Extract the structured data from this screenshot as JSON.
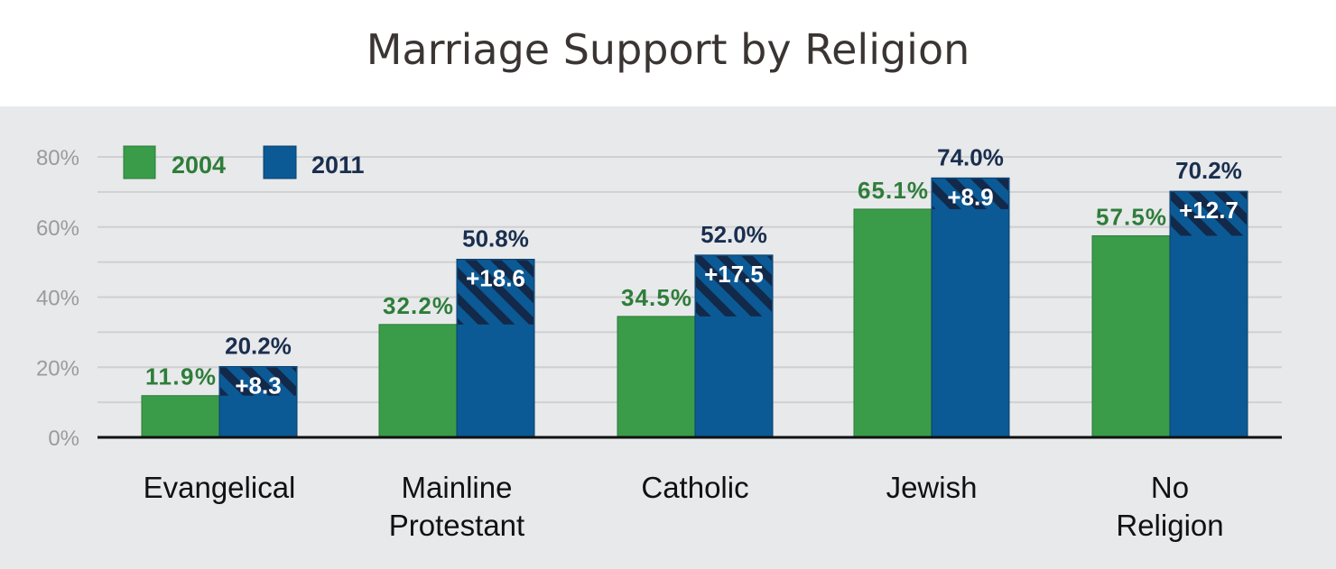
{
  "chart_data": {
    "type": "bar",
    "title": "Marriage Support by Religion",
    "categories": [
      [
        "Evangelical"
      ],
      [
        "Mainline",
        "Protestant"
      ],
      [
        "Catholic"
      ],
      [
        "Jewish"
      ],
      [
        "No",
        "Religion"
      ]
    ],
    "series": [
      {
        "name": "2004",
        "values": [
          11.9,
          32.2,
          34.5,
          65.1,
          57.5
        ],
        "labels": [
          "11.9%",
          "32.2%",
          "34.5%",
          "65.1%",
          "57.5%"
        ],
        "color": "#3a9c48",
        "label_color": "#2e7d3a"
      },
      {
        "name": "2011",
        "values": [
          20.2,
          50.8,
          52.0,
          74.0,
          70.2
        ],
        "labels": [
          "20.2%",
          "50.8%",
          "52.0%",
          "74.0%",
          "70.2%"
        ],
        "color": "#0b5a95",
        "label_color": "#1a2f4f"
      }
    ],
    "change_labels": [
      "+8.3",
      "+18.6",
      "+17.5",
      "+8.9",
      "+12.7"
    ],
    "change_hatch_color": "#13294a",
    "y_ticks": [
      "0%",
      "20%",
      "40%",
      "60%",
      "80%"
    ],
    "y_tick_values": [
      0,
      20,
      40,
      60,
      80
    ],
    "ylim": [
      0,
      80
    ],
    "grid": true,
    "legend_position": "top-left"
  }
}
